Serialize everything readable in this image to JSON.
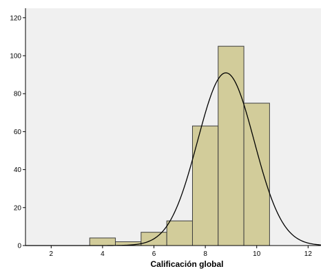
{
  "chart_data": {
    "type": "histogram",
    "title": "",
    "xlabel": "Calificación global",
    "ylabel": "",
    "xlim": [
      1,
      12.5
    ],
    "ylim": [
      0,
      125
    ],
    "xticks": [
      2,
      4,
      6,
      8,
      10,
      12
    ],
    "yticks": [
      0,
      20,
      40,
      60,
      80,
      100,
      120
    ],
    "bins": [
      {
        "from": 3.5,
        "to": 4.5,
        "count": 4
      },
      {
        "from": 4.5,
        "to": 5.5,
        "count": 2
      },
      {
        "from": 5.5,
        "to": 6.5,
        "count": 7
      },
      {
        "from": 6.5,
        "to": 7.5,
        "count": 13
      },
      {
        "from": 7.5,
        "to": 8.5,
        "count": 63
      },
      {
        "from": 8.5,
        "to": 9.5,
        "count": 105
      },
      {
        "from": 9.5,
        "to": 10.5,
        "count": 75
      }
    ],
    "normal_curve": {
      "mean": 8.8,
      "sd": 1.1,
      "peak": 91
    },
    "grid": false,
    "legend": "none",
    "colors": {
      "plot_background": "#f0f0f0",
      "bar_fill": "#d2cc9a",
      "bar_edge": "#3c3c3c",
      "curve": "#000000"
    }
  }
}
